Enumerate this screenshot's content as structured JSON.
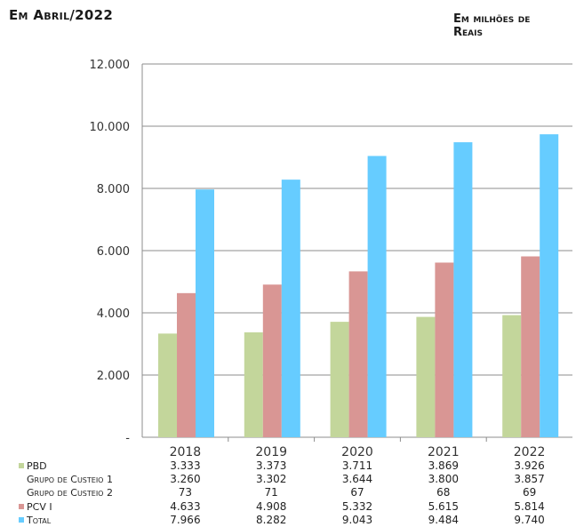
{
  "header": {
    "date_label": "Em Abril/2022",
    "unit_label_line1": "Em milhões de",
    "unit_label_line2": "Reais"
  },
  "chart_data": {
    "type": "bar",
    "categories": [
      "2018",
      "2019",
      "2020",
      "2021",
      "2022"
    ],
    "ylim": [
      0,
      12000
    ],
    "yticks": [
      "-",
      "2.000",
      "4.000",
      "6.000",
      "8.000",
      "10.000",
      "12.000"
    ],
    "grid": true,
    "series": [
      {
        "name": "PBD",
        "values": [
          3333,
          3373,
          3711,
          3869,
          3926
        ],
        "color": "#c3d69b",
        "plotted": true,
        "marker": true
      },
      {
        "name": "Grupo de Custeio 1",
        "values": [
          3260,
          3302,
          3644,
          3800,
          3857
        ],
        "color": null,
        "plotted": false,
        "marker": false
      },
      {
        "name": "Grupo de Custeio 2",
        "values": [
          73,
          71,
          67,
          68,
          69
        ],
        "color": null,
        "plotted": false,
        "marker": false
      },
      {
        "name": "PCV I",
        "values": [
          4633,
          4908,
          5332,
          5615,
          5814
        ],
        "color": "#d99694",
        "plotted": true,
        "marker": true
      },
      {
        "name": "Total",
        "values": [
          7966,
          8282,
          9043,
          9484,
          9740
        ],
        "color": "#66ccff",
        "plotted": true,
        "marker": true
      }
    ],
    "table_rows": [
      {
        "name": "PBD",
        "values": [
          "3.333",
          "3.373",
          "3.711",
          "3.869",
          "3.926"
        ]
      },
      {
        "name": "Grupo de Custeio 1",
        "values": [
          "3.260",
          "3.302",
          "3.644",
          "3.800",
          "3.857"
        ]
      },
      {
        "name": "Grupo de Custeio 2",
        "values": [
          "73",
          "71",
          "67",
          "68",
          "69"
        ]
      },
      {
        "name": "PCV I",
        "values": [
          "4.633",
          "4.908",
          "5.332",
          "5.615",
          "5.814"
        ]
      },
      {
        "name": "Total",
        "values": [
          "7.966",
          "8.282",
          "9.043",
          "9.484",
          "9.740"
        ]
      }
    ]
  }
}
